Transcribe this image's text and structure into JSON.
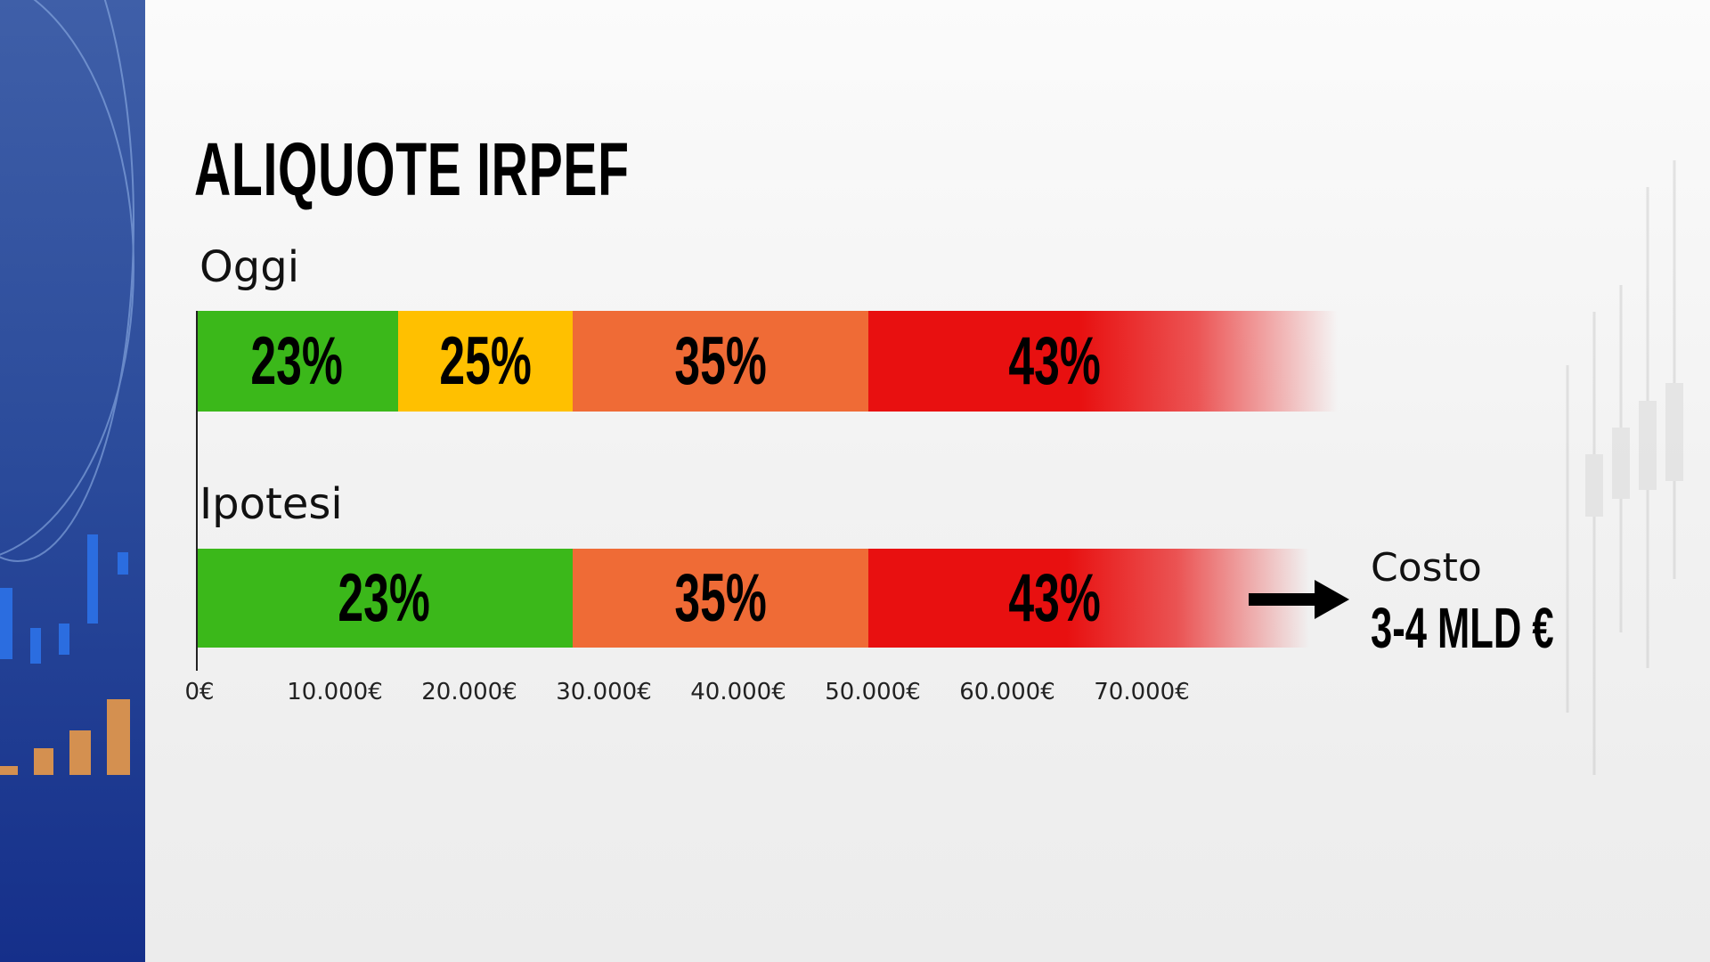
{
  "chart_data": {
    "type": "bar",
    "orientation": "horizontal-stacked",
    "title": "ALIQUOTE IRPEF",
    "xlim": [
      0,
      70000
    ],
    "x_ticks": [
      "0€",
      "10.000€",
      "20.000€",
      "30.000€",
      "40.000€",
      "50.000€",
      "60.000€",
      "70.000€"
    ],
    "series": [
      {
        "name": "Oggi",
        "segments": [
          {
            "from": 0,
            "to": 15000,
            "label": "23%",
            "color": "#3bb81a"
          },
          {
            "from": 15000,
            "to": 28000,
            "label": "25%",
            "color": "#ffc000"
          },
          {
            "from": 28000,
            "to": 50000,
            "label": "35%",
            "color": "#ef6b36"
          },
          {
            "from": 50000,
            "to": null,
            "label": "43%",
            "color": "#e81010"
          }
        ]
      },
      {
        "name": "Ipotesi",
        "segments": [
          {
            "from": 0,
            "to": 28000,
            "label": "23%",
            "color": "#3bb81a"
          },
          {
            "from": 28000,
            "to": 50000,
            "label": "35%",
            "color": "#ef6b36"
          },
          {
            "from": 50000,
            "to": null,
            "label": "43%",
            "color": "#e81010"
          }
        ]
      }
    ],
    "annotation": {
      "label": "Costo",
      "value": "3-4 MLD €"
    }
  }
}
